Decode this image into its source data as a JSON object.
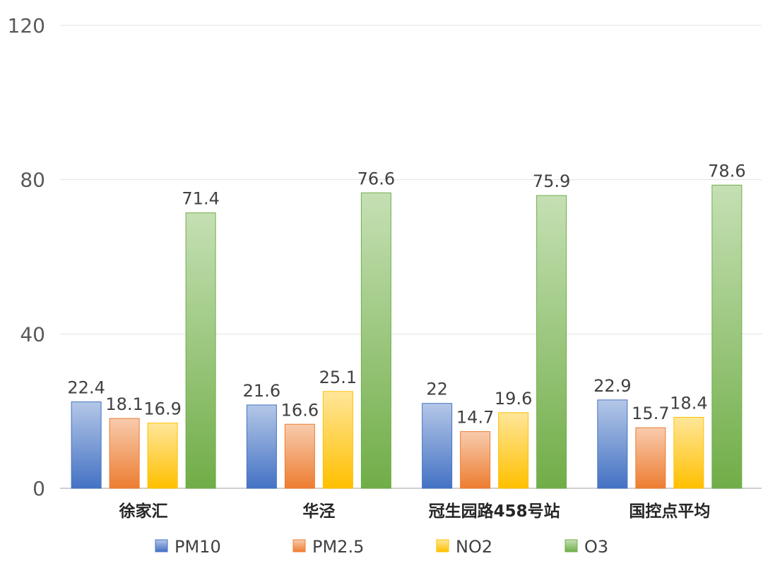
{
  "chart_data": {
    "type": "bar",
    "categories": [
      "徐家汇",
      "华泾",
      "冠生园路458号站",
      "国控点平均"
    ],
    "series": [
      {
        "name": "PM10",
        "color": "#4472C4",
        "color_light": "#B4C7E7",
        "values": [
          22.4,
          21.6,
          22,
          22.9
        ]
      },
      {
        "name": "PM2.5",
        "color": "#ED7D31",
        "color_light": "#F8CBAD",
        "values": [
          18.1,
          16.6,
          14.7,
          15.7
        ]
      },
      {
        "name": "NO2",
        "color": "#FFC000",
        "color_light": "#FFE699",
        "values": [
          16.9,
          25.1,
          19.6,
          18.4
        ]
      },
      {
        "name": "O3",
        "color": "#70AD47",
        "color_light": "#C5E0B4",
        "values": [
          71.4,
          76.6,
          75.9,
          78.6
        ]
      }
    ],
    "ylim": [
      0,
      120
    ],
    "yticks": [
      0,
      40,
      80,
      120
    ],
    "grid": true,
    "legend_position": "bottom"
  }
}
